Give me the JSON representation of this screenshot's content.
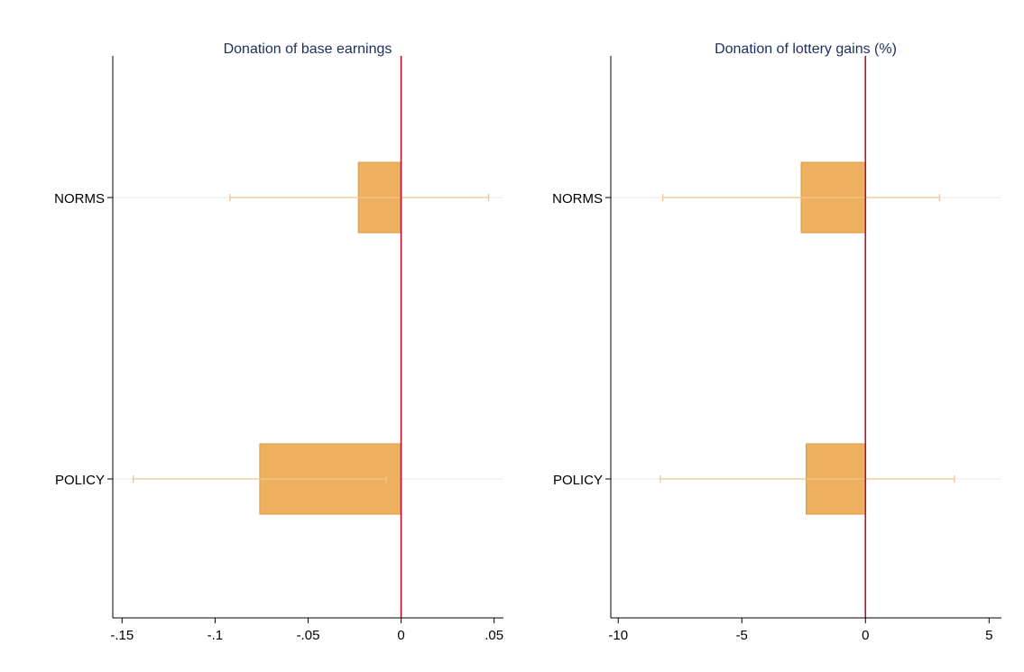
{
  "chart_data": [
    {
      "type": "bar",
      "orientation": "horizontal",
      "title": "Donation of base earnings",
      "categories": [
        "NORMS",
        "POLICY"
      ],
      "values": [
        -0.023,
        -0.076
      ],
      "ci_low": [
        -0.092,
        -0.144
      ],
      "ci_high": [
        0.047,
        -0.008
      ],
      "xlim": [
        -0.155,
        0.055
      ],
      "xticks": [
        -0.15,
        -0.1,
        -0.05,
        0,
        0.05
      ],
      "xtick_labels": [
        "-.15",
        "-.1",
        "-.05",
        "0",
        ".05"
      ],
      "reference_line": 0,
      "reference_color": "#b0122b",
      "bar_color": "#ecb05e",
      "grid": true
    },
    {
      "type": "bar",
      "orientation": "horizontal",
      "title": "Donation of lottery gains (%)",
      "categories": [
        "NORMS",
        "POLICY"
      ],
      "values": [
        -2.6,
        -2.4
      ],
      "ci_low": [
        -8.2,
        -8.3
      ],
      "ci_high": [
        3.0,
        3.6
      ],
      "xlim": [
        -10.3,
        5.5
      ],
      "xticks": [
        -10,
        -5,
        0,
        5
      ],
      "xtick_labels": [
        "-10",
        "-5",
        "0",
        "5"
      ],
      "reference_line": 0,
      "reference_color": "#b0122b",
      "bar_color": "#ecb05e",
      "grid": true
    }
  ]
}
